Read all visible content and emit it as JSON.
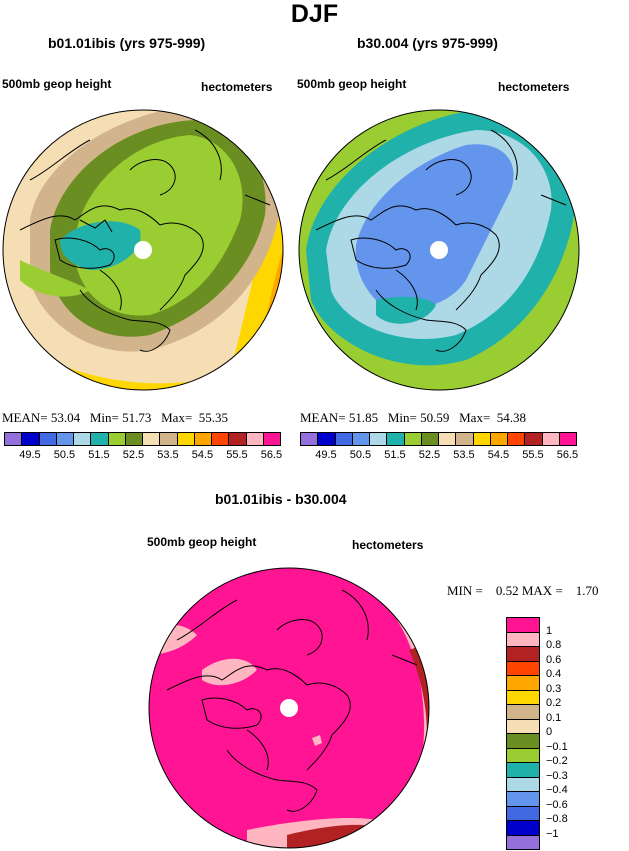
{
  "title": "DJF",
  "panels": [
    {
      "name": "b01.01ibis (yrs 975-999)",
      "field": "500mb geop height",
      "units": "hectometers",
      "stats": {
        "mean_label": "MEAN=",
        "mean": "53.04",
        "min_label": "Min=",
        "min": "51.73",
        "max_label": "Max=",
        "max": "55.35"
      }
    },
    {
      "name": "b30.004 (yrs 975-999)",
      "field": "500mb geop height",
      "units": "hectometers",
      "stats": {
        "mean_label": "MEAN=",
        "mean": "51.85",
        "min_label": "Min=",
        "min": "50.59",
        "max_label": "Max=",
        "max": "54.38"
      }
    }
  ],
  "colorbar_top": {
    "colors": [
      "#9370db",
      "#0000cd",
      "#4169e1",
      "#6495ed",
      "#add8e6",
      "#20b2aa",
      "#9acd32",
      "#6b8e23",
      "#f5deb3",
      "#d2b48c",
      "#ffd700",
      "#ffa500",
      "#ff4500",
      "#b22222",
      "#ffb6c1",
      "#ff1493"
    ],
    "ticks": [
      "49.5",
      "50.5",
      "51.5",
      "52.5",
      "53.5",
      "54.5",
      "55.5",
      "56.5"
    ]
  },
  "diff_panel": {
    "name": "b01.01ibis - b30.004",
    "field": "500mb geop height",
    "units": "hectometers",
    "stats": {
      "min_label": "MIN =",
      "min": "0.52",
      "max_label": "MAX =",
      "max": "1.70"
    }
  },
  "colorbar_diff": {
    "colors": [
      "#ff1493",
      "#ffb6c1",
      "#b22222",
      "#ff4500",
      "#ffa500",
      "#ffd700",
      "#d2b48c",
      "#f5deb3",
      "#6b8e23",
      "#9acd32",
      "#20b2aa",
      "#add8e6",
      "#6495ed",
      "#4169e1",
      "#0000cd",
      "#9370db"
    ],
    "ticks": [
      "1",
      "0.8",
      "0.6",
      "0.4",
      "0.3",
      "0.2",
      "0.1",
      "0",
      "−0.1",
      "−0.2",
      "−0.3",
      "−0.4",
      "−0.6",
      "−0.8",
      "−1"
    ]
  },
  "palette": {
    "purple": "#9370db",
    "blue": "#0000cd",
    "royal": "#4169e1",
    "cornflower": "#6495ed",
    "lightblue": "#add8e6",
    "teal": "#20b2aa",
    "yellowgreen": "#9acd32",
    "olive": "#6b8e23",
    "wheat": "#f5deb3",
    "tan": "#d2b48c",
    "gold": "#ffd700",
    "orange": "#ffa500",
    "orangered": "#ff4500",
    "firebrick": "#b22222",
    "pink": "#ffb6c1",
    "magenta": "#ff1493"
  }
}
